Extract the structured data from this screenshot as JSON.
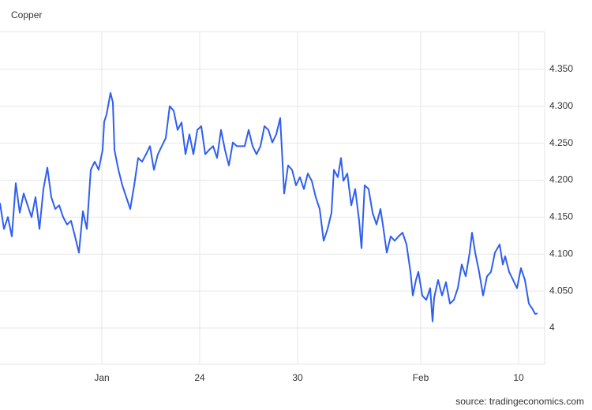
{
  "chart_data": {
    "type": "line",
    "title": "Copper",
    "source": "source: tradingeconomics.com",
    "x": [
      0,
      1,
      2,
      3,
      4,
      5,
      6,
      7,
      8,
      9,
      10,
      11,
      12,
      13,
      14,
      15,
      16,
      17,
      18,
      19,
      20,
      21,
      22,
      23,
      24,
      25,
      26,
      26.4,
      27,
      28,
      28.6,
      29,
      30,
      31,
      32,
      33,
      34,
      35,
      36,
      37,
      38,
      39,
      40,
      41,
      42,
      43,
      44,
      45,
      46,
      47,
      48,
      49,
      50,
      51,
      52,
      53,
      54,
      55,
      56,
      57,
      58,
      59,
      60,
      61,
      62,
      63,
      64,
      65,
      66,
      67,
      68,
      69,
      70,
      71,
      72,
      73,
      74,
      75,
      76,
      77,
      78,
      79,
      80,
      81,
      82,
      83,
      84,
      84.6,
      85.6,
      86.4,
      87,
      88,
      89,
      90,
      91,
      91.6,
      92.4,
      93.4,
      94.4,
      95.4,
      96.4,
      97,
      98,
      99,
      100,
      101,
      102,
      103,
      104,
      104.6,
      105.4,
      106,
      107,
      108,
      109,
      109.6,
      110,
      111,
      112,
      113,
      114,
      115,
      116,
      117,
      118,
      119,
      119.6,
      120.4,
      121.4,
      122.4,
      123.4,
      124.4,
      125.4,
      126.6,
      127.4,
      128,
      129,
      130,
      131,
      132,
      133,
      134,
      135,
      135.6,
      136.2
    ],
    "series": [
      {
        "name": "Copper",
        "color": "#2f5ff0",
        "values": [
          4.169,
          4.134,
          4.15,
          4.124,
          4.196,
          4.156,
          4.182,
          4.166,
          4.15,
          4.177,
          4.134,
          4.188,
          4.217,
          4.177,
          4.161,
          4.166,
          4.15,
          4.14,
          4.145,
          4.124,
          4.102,
          4.158,
          4.134,
          4.214,
          4.225,
          4.214,
          4.241,
          4.279,
          4.289,
          4.318,
          4.305,
          4.241,
          4.214,
          4.193,
          4.177,
          4.161,
          4.193,
          4.23,
          4.225,
          4.235,
          4.246,
          4.214,
          4.235,
          4.246,
          4.257,
          4.3,
          4.294,
          4.268,
          4.278,
          4.235,
          4.262,
          4.235,
          4.268,
          4.273,
          4.235,
          4.241,
          4.246,
          4.23,
          4.268,
          4.241,
          4.22,
          4.251,
          4.246,
          4.246,
          4.246,
          4.268,
          4.246,
          4.235,
          4.246,
          4.273,
          4.268,
          4.251,
          4.262,
          4.284,
          4.182,
          4.22,
          4.214,
          4.193,
          4.204,
          4.188,
          4.209,
          4.199,
          4.177,
          4.161,
          4.118,
          4.134,
          4.156,
          4.214,
          4.204,
          4.23,
          4.199,
          4.209,
          4.166,
          4.188,
          4.145,
          4.108,
          4.193,
          4.188,
          4.156,
          4.14,
          4.161,
          4.14,
          4.102,
          4.124,
          4.118,
          4.124,
          4.129,
          4.113,
          4.076,
          4.044,
          4.065,
          4.076,
          4.044,
          4.038,
          4.054,
          4.009,
          4.041,
          4.065,
          4.044,
          4.062,
          4.033,
          4.038,
          4.054,
          4.086,
          4.07,
          4.102,
          4.129,
          4.102,
          4.076,
          4.044,
          4.07,
          4.076,
          4.102,
          4.113,
          4.086,
          4.097,
          4.076,
          4.065,
          4.054,
          4.081,
          4.065,
          4.033,
          4.025,
          4.019,
          4.02
        ]
      }
    ],
    "xlim": [
      0,
      138
    ],
    "xticks": [
      {
        "value": 25.8,
        "label": "Jan"
      },
      {
        "value": 50.6,
        "label": "24"
      },
      {
        "value": 75.4,
        "label": "30"
      },
      {
        "value": 106.6,
        "label": "Feb"
      },
      {
        "value": 131.4,
        "label": "10"
      }
    ],
    "ylim": [
      3.951,
      4.401
    ],
    "yticks": [
      4,
      {
        "value": 4.05,
        "label": "4.050"
      },
      {
        "value": 4.1,
        "label": "4.100"
      },
      {
        "value": 4.15,
        "label": "4.150"
      },
      {
        "value": 4.2,
        "label": "4.200"
      },
      {
        "value": 4.25,
        "label": "4.250"
      },
      {
        "value": 4.3,
        "label": "4.300"
      },
      {
        "value": 4.35,
        "label": "4.350"
      }
    ],
    "grid": true
  }
}
